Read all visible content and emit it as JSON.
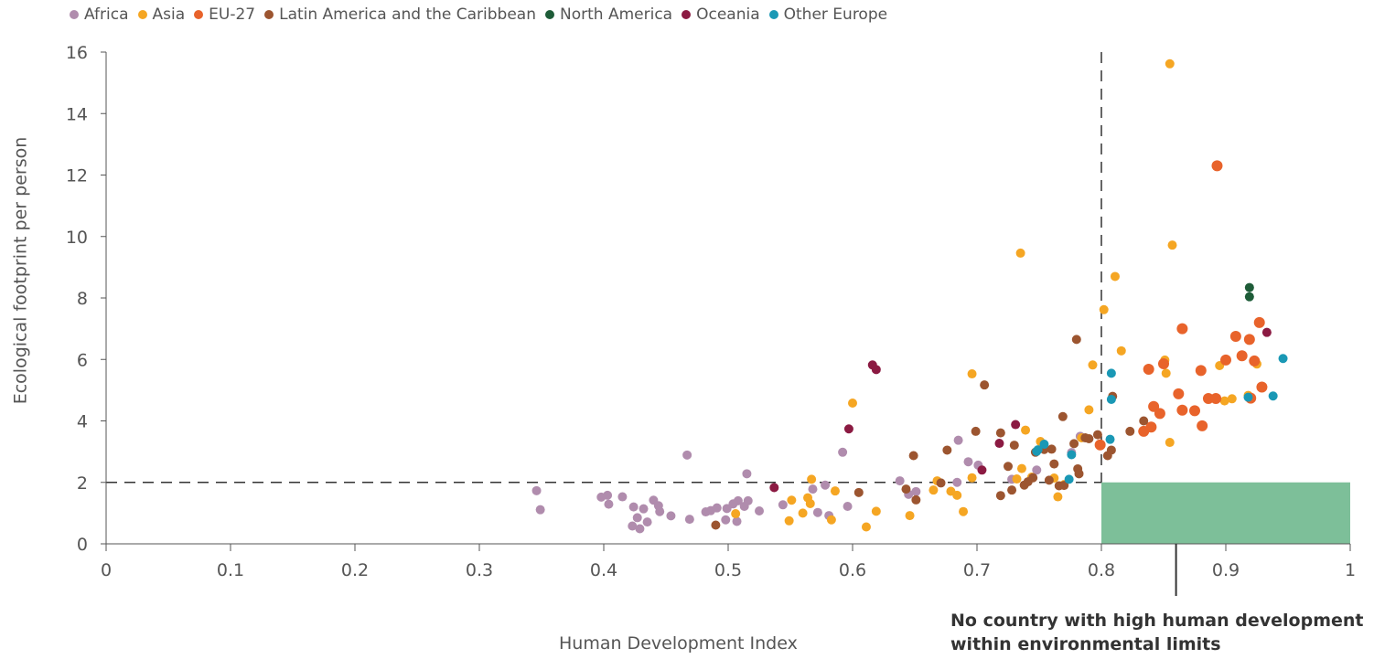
{
  "chart_data": {
    "type": "scatter",
    "xlabel": "Human Development Index",
    "ylabel": "Ecological footprint per person",
    "xlim": [
      0,
      1
    ],
    "ylim": [
      0,
      16
    ],
    "x_ticks": [
      "0",
      "0.1",
      "0.2",
      "0.3",
      "0.4",
      "0.5",
      "0.6",
      "0.7",
      "0.8",
      "0.9",
      "1"
    ],
    "y_ticks": [
      "0",
      "2",
      "4",
      "6",
      "8",
      "10",
      "12",
      "14",
      "16"
    ],
    "grid": false,
    "legend_position": "top",
    "reference_lines": {
      "hdi_threshold": 0.8,
      "footprint_threshold": 2
    },
    "highlight_region": {
      "x": [
        0.8,
        1
      ],
      "y": [
        0,
        2
      ],
      "color": "#7dbf99"
    },
    "annotation": {
      "line1": "No country with high human development",
      "line2": "within environmental limits",
      "pointer_x": 0.86
    },
    "series": [
      {
        "name": "Africa",
        "color": "#b08cad",
        "points": [
          [
            0.346,
            1.73
          ],
          [
            0.349,
            1.11
          ],
          [
            0.398,
            1.52
          ],
          [
            0.403,
            1.58
          ],
          [
            0.404,
            1.29
          ],
          [
            0.415,
            1.53
          ],
          [
            0.423,
            0.58
          ],
          [
            0.424,
            1.2
          ],
          [
            0.427,
            0.85
          ],
          [
            0.429,
            0.49
          ],
          [
            0.432,
            1.14
          ],
          [
            0.435,
            0.71
          ],
          [
            0.44,
            1.42
          ],
          [
            0.444,
            1.24
          ],
          [
            0.445,
            1.05
          ],
          [
            0.454,
            0.91
          ],
          [
            0.467,
            2.89
          ],
          [
            0.469,
            0.8
          ],
          [
            0.482,
            1.04
          ],
          [
            0.486,
            1.08
          ],
          [
            0.491,
            1.17
          ],
          [
            0.498,
            0.78
          ],
          [
            0.499,
            1.15
          ],
          [
            0.504,
            1.3
          ],
          [
            0.507,
            0.73
          ],
          [
            0.508,
            1.4
          ],
          [
            0.513,
            1.22
          ],
          [
            0.515,
            2.28
          ],
          [
            0.516,
            1.4
          ],
          [
            0.525,
            1.07
          ],
          [
            0.544,
            1.27
          ],
          [
            0.568,
            1.78
          ],
          [
            0.572,
            1.02
          ],
          [
            0.578,
            1.91
          ],
          [
            0.581,
            0.92
          ],
          [
            0.592,
            2.98
          ],
          [
            0.596,
            1.22
          ],
          [
            0.638,
            2.05
          ],
          [
            0.645,
            1.61
          ],
          [
            0.651,
            1.7
          ],
          [
            0.685,
            3.37
          ],
          [
            0.693,
            2.67
          ],
          [
            0.701,
            2.56
          ],
          [
            0.728,
            2.1
          ],
          [
            0.748,
            2.4
          ],
          [
            0.776,
            2.97
          ],
          [
            0.783,
            3.5
          ],
          [
            0.684,
            2.0
          ]
        ]
      },
      {
        "name": "Asia",
        "color": "#f5a623",
        "points": [
          [
            0.506,
            0.98
          ],
          [
            0.549,
            0.75
          ],
          [
            0.551,
            1.42
          ],
          [
            0.56,
            1.0
          ],
          [
            0.564,
            1.5
          ],
          [
            0.566,
            1.31
          ],
          [
            0.567,
            2.1
          ],
          [
            0.583,
            0.78
          ],
          [
            0.586,
            1.72
          ],
          [
            0.6,
            4.58
          ],
          [
            0.611,
            0.55
          ],
          [
            0.619,
            1.06
          ],
          [
            0.646,
            0.92
          ],
          [
            0.665,
            1.75
          ],
          [
            0.668,
            2.05
          ],
          [
            0.679,
            1.71
          ],
          [
            0.684,
            1.58
          ],
          [
            0.689,
            1.05
          ],
          [
            0.696,
            5.53
          ],
          [
            0.696,
            2.15
          ],
          [
            0.732,
            2.11
          ],
          [
            0.735,
            9.46
          ],
          [
            0.736,
            2.45
          ],
          [
            0.739,
            3.7
          ],
          [
            0.744,
            2.17
          ],
          [
            0.751,
            3.33
          ],
          [
            0.762,
            2.14
          ],
          [
            0.765,
            1.53
          ],
          [
            0.77,
            1.93
          ],
          [
            0.784,
            3.45
          ],
          [
            0.79,
            4.36
          ],
          [
            0.793,
            5.82
          ],
          [
            0.802,
            7.62
          ],
          [
            0.811,
            8.7
          ],
          [
            0.816,
            6.28
          ],
          [
            0.851,
            5.98
          ],
          [
            0.852,
            5.55
          ],
          [
            0.855,
            15.62
          ],
          [
            0.855,
            3.3
          ],
          [
            0.857,
            9.72
          ],
          [
            0.895,
            5.8
          ],
          [
            0.899,
            4.65
          ],
          [
            0.905,
            4.72
          ],
          [
            0.925,
            5.85
          ],
          [
            0.918,
            4.83
          ]
        ]
      },
      {
        "name": "EU-27",
        "color": "#e8632b",
        "points": [
          [
            0.799,
            3.22
          ],
          [
            0.834,
            3.66
          ],
          [
            0.838,
            5.68
          ],
          [
            0.84,
            3.8
          ],
          [
            0.842,
            4.47
          ],
          [
            0.847,
            4.24
          ],
          [
            0.85,
            5.86
          ],
          [
            0.862,
            4.88
          ],
          [
            0.865,
            7.0
          ],
          [
            0.865,
            4.35
          ],
          [
            0.875,
            4.33
          ],
          [
            0.88,
            5.64
          ],
          [
            0.881,
            3.84
          ],
          [
            0.886,
            4.73
          ],
          [
            0.892,
            4.73
          ],
          [
            0.893,
            12.3
          ],
          [
            0.9,
            5.98
          ],
          [
            0.908,
            6.75
          ],
          [
            0.913,
            6.12
          ],
          [
            0.919,
            6.65
          ],
          [
            0.92,
            4.74
          ],
          [
            0.923,
            5.95
          ],
          [
            0.927,
            7.2
          ],
          [
            0.929,
            5.1
          ]
        ]
      },
      {
        "name": "Latin America and the Caribbean",
        "color": "#9c5530",
        "points": [
          [
            0.49,
            0.61
          ],
          [
            0.605,
            1.67
          ],
          [
            0.643,
            1.78
          ],
          [
            0.649,
            2.87
          ],
          [
            0.651,
            1.43
          ],
          [
            0.671,
            1.98
          ],
          [
            0.676,
            3.05
          ],
          [
            0.699,
            3.66
          ],
          [
            0.706,
            5.17
          ],
          [
            0.719,
            1.57
          ],
          [
            0.719,
            3.61
          ],
          [
            0.725,
            2.52
          ],
          [
            0.728,
            1.75
          ],
          [
            0.73,
            3.21
          ],
          [
            0.738,
            1.91
          ],
          [
            0.741,
            2.02
          ],
          [
            0.745,
            2.15
          ],
          [
            0.747,
            2.98
          ],
          [
            0.754,
            3.07
          ],
          [
            0.758,
            2.07
          ],
          [
            0.76,
            3.08
          ],
          [
            0.762,
            2.6
          ],
          [
            0.766,
            1.89
          ],
          [
            0.769,
            4.14
          ],
          [
            0.77,
            1.9
          ],
          [
            0.778,
            3.26
          ],
          [
            0.78,
            6.65
          ],
          [
            0.781,
            2.44
          ],
          [
            0.782,
            2.28
          ],
          [
            0.787,
            3.45
          ],
          [
            0.79,
            3.42
          ],
          [
            0.797,
            3.55
          ],
          [
            0.808,
            3.05
          ],
          [
            0.809,
            4.8
          ],
          [
            0.823,
            3.66
          ],
          [
            0.834,
            4.0
          ],
          [
            0.805,
            2.87
          ]
        ]
      },
      {
        "name": "North America",
        "color": "#1e5c38",
        "points": [
          [
            0.919,
            8.34
          ],
          [
            0.919,
            8.04
          ]
        ]
      },
      {
        "name": "Oceania",
        "color": "#8b1a42",
        "points": [
          [
            0.537,
            1.83
          ],
          [
            0.597,
            3.74
          ],
          [
            0.616,
            5.82
          ],
          [
            0.619,
            5.67
          ],
          [
            0.704,
            2.4
          ],
          [
            0.718,
            3.27
          ],
          [
            0.731,
            3.88
          ],
          [
            0.933,
            6.88
          ]
        ]
      },
      {
        "name": "Other Europe",
        "color": "#1a98b5",
        "points": [
          [
            0.748,
            3.01
          ],
          [
            0.749,
            3.06
          ],
          [
            0.754,
            3.24
          ],
          [
            0.774,
            2.1
          ],
          [
            0.776,
            2.9
          ],
          [
            0.807,
            3.4
          ],
          [
            0.808,
            5.55
          ],
          [
            0.808,
            4.7
          ],
          [
            0.918,
            4.77
          ],
          [
            0.938,
            4.81
          ],
          [
            0.946,
            6.03
          ]
        ]
      }
    ]
  }
}
